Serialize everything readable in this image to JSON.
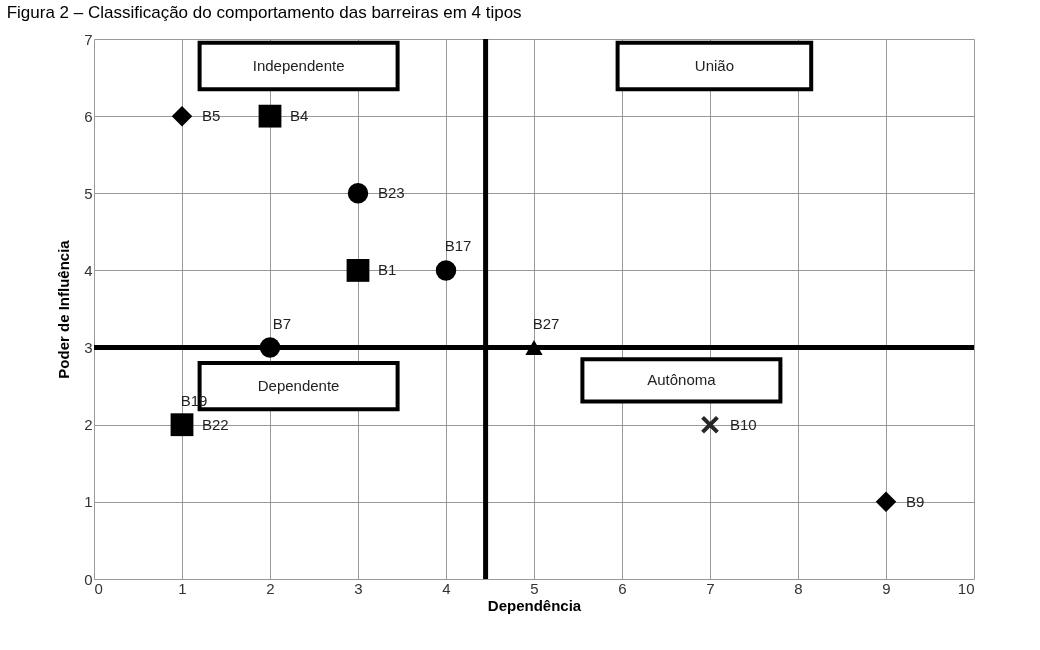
{
  "chart_data": {
    "type": "scatter",
    "title": "Figura 2 – Classificação do comportamento das barreiras em 4 tipos",
    "xlabel": "Dependência",
    "ylabel": "Poder de Influência",
    "xlim": [
      0,
      10
    ],
    "xticks": [
      0,
      1,
      2,
      3,
      4,
      5,
      6,
      7,
      8,
      9,
      10
    ],
    "ylim": [
      0,
      7
    ],
    "yticks": [
      0,
      1,
      2,
      3,
      4,
      5,
      6,
      7
    ],
    "grid": true,
    "series": [
      {
        "color": "#000000",
        "marker": "square",
        "x": [
          2,
          3,
          1
        ],
        "values": [
          6,
          4,
          2
        ]
      },
      {
        "color": "#000000",
        "marker": "diamond",
        "x": [
          1,
          9
        ],
        "values": [
          6,
          1
        ]
      },
      {
        "color": "#000000",
        "marker": "circle",
        "x": [
          3,
          4,
          2
        ],
        "values": [
          5,
          4,
          3
        ]
      },
      {
        "color": "#000000",
        "marker": "triangle",
        "x": [
          5
        ],
        "values": [
          3
        ]
      },
      {
        "color": "#262626",
        "marker": "cross",
        "x": [
          7
        ],
        "values": [
          2
        ]
      }
    ],
    "ref_lines": [
      {
        "axis": "x",
        "value": 4.45,
        "color": "#000000"
      },
      {
        "axis": "y",
        "value": 3,
        "color": "#000000"
      }
    ],
    "annotations": [
      "Independente",
      "União",
      "Dependente",
      "Autônoma",
      {
        "text": "B5",
        "x": 1,
        "y": 6
      },
      {
        "text": "B4",
        "x": 2,
        "y": 6
      },
      {
        "text": "B23",
        "x": 3,
        "y": 5
      },
      {
        "text": "B1",
        "x": 3,
        "y": 4
      },
      {
        "text": "B17",
        "x": 4,
        "y": 4
      },
      {
        "text": "B7",
        "x": 2,
        "y": 3
      },
      {
        "text": "B27",
        "x": 5,
        "y": 3
      },
      {
        "text": "B22",
        "x": 1,
        "y": 2
      },
      {
        "text": "B19",
        "x": 1,
        "y": 2
      },
      {
        "text": "B10",
        "x": 7,
        "y": 2
      },
      {
        "text": "B9",
        "x": 9,
        "y": 1
      }
    ]
  }
}
